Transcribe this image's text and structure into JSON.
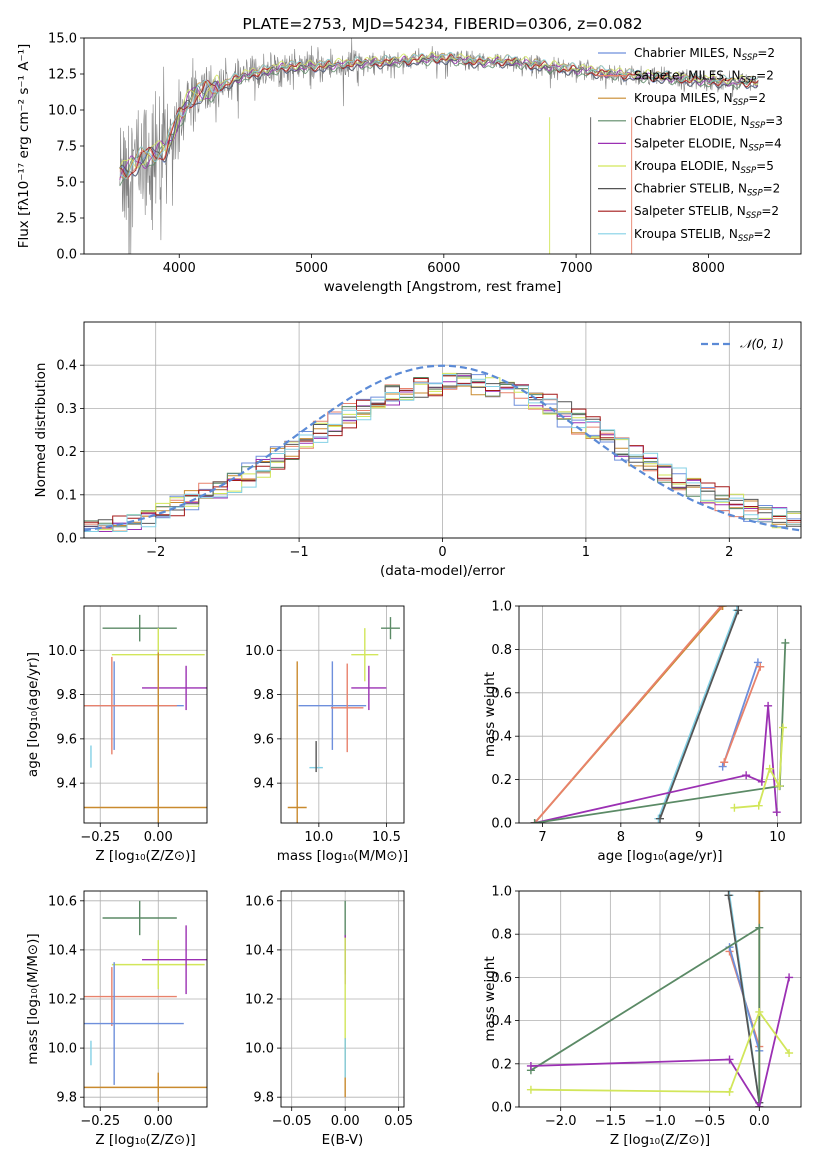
{
  "chart_data": [
    {
      "id": "spectrum",
      "type": "line",
      "title": "PLATE=2753, MJD=54234, FIBERID=0306, z=0.082",
      "xlabel": "wavelength [Angstrom, rest frame]",
      "ylabel": "Flux [fλ10⁻¹⁷ erg cm⁻² s⁻¹ A⁻¹]",
      "xlim": [
        3280,
        8700
      ],
      "ylim": [
        0,
        15
      ],
      "xticks": [
        4000,
        5000,
        6000,
        7000,
        8000
      ],
      "yticks": [
        0.0,
        2.5,
        5.0,
        7.5,
        10.0,
        12.5,
        15.0
      ],
      "grid": false,
      "legend_position": "right",
      "data": {
        "name": "data",
        "color": "#808080",
        "x_range": [
          3550,
          8380
        ],
        "x": [
          3550,
          3700,
          3900,
          4000,
          4100,
          4300,
          4500,
          4800,
          5000,
          5300,
          5500,
          5800,
          6000,
          6300,
          6500,
          6800,
          7000,
          7300,
          7600,
          8000,
          8380
        ],
        "y": [
          5.5,
          6.5,
          7.3,
          9.5,
          11.0,
          11.6,
          12.4,
          13.0,
          13.0,
          13.2,
          13.3,
          13.5,
          13.6,
          13.3,
          13.4,
          13.0,
          12.8,
          12.5,
          12.3,
          12.0,
          11.9
        ]
      },
      "legend": [
        {
          "label": "Chabrier MILES, N",
          "sub": "SSP",
          "tail": "=2",
          "color": "#6e8fdc"
        },
        {
          "label": "Salpeter MILES, N",
          "sub": "SSP",
          "tail": "=2",
          "color": "#e8826c"
        },
        {
          "label": "Kroupa MILES, N",
          "sub": "SSP",
          "tail": "=2",
          "color": "#c98a2e"
        },
        {
          "label": "Chabrier ELODIE, N",
          "sub": "SSP",
          "tail": "=3",
          "color": "#5b8a66"
        },
        {
          "label": "Salpeter ELODIE, N",
          "sub": "SSP",
          "tail": "=4",
          "color": "#9b30b3"
        },
        {
          "label": "Kroupa ELODIE, N",
          "sub": "SSP",
          "tail": "=5",
          "color": "#d2e65a"
        },
        {
          "label": "Chabrier STELIB, N",
          "sub": "SSP",
          "tail": "=2",
          "color": "#555555"
        },
        {
          "label": "Salpeter STELIB, N",
          "sub": "SSP",
          "tail": "=2",
          "color": "#a31919"
        },
        {
          "label": "Kroupa STELIB, N",
          "sub": "SSP",
          "tail": "=2",
          "color": "#84d1e6"
        }
      ]
    },
    {
      "id": "residuals",
      "type": "line",
      "xlabel": "(data-model)/error",
      "ylabel": "Normed distribution",
      "xlim": [
        -2.5,
        2.5
      ],
      "ylim": [
        0,
        0.5
      ],
      "xticks": [
        -2,
        -1,
        0,
        1,
        2
      ],
      "yticks": [
        0.0,
        0.1,
        0.2,
        0.3,
        0.4
      ],
      "grid": true,
      "legend_position": "top-right",
      "legend": {
        "label": "𝒩(0, 1)",
        "color": "#5b8ad6",
        "style": "dashed"
      }
    },
    {
      "id": "age-vs-Z",
      "type": "scatter",
      "xlabel": "Z [log₁₀(Z/Z⊙)]",
      "ylabel": "age  [log₁₀(age/yr)]",
      "xlim": [
        -0.32,
        0.21
      ],
      "ylim": [
        9.22,
        10.2
      ],
      "xticks": [
        -0.25,
        0.0
      ],
      "yticks": [
        9.4,
        9.6,
        9.8,
        10.0
      ],
      "grid": true,
      "errorbars": [
        {
          "color": "#5b8a66",
          "x": -0.08,
          "y": 10.1,
          "xerr": 0.16,
          "yerr": 0.06
        },
        {
          "color": "#d2e65a",
          "x": 0.0,
          "y": 9.98,
          "xerr": 0.2,
          "yerr": 0.12
        },
        {
          "color": "#9b30b3",
          "x": 0.12,
          "y": 9.83,
          "xerr": 0.19,
          "yerr": 0.1
        },
        {
          "color": "#6e8fdc",
          "x": -0.19,
          "y": 9.75,
          "xerr": 0.3,
          "yerr": 0.2
        },
        {
          "color": "#e8826c",
          "x": -0.2,
          "y": 9.75,
          "xerr": 0.28,
          "yerr": 0.22
        },
        {
          "color": "#c98a2e",
          "x": 0.0,
          "y": 9.29,
          "xerr": 0.33,
          "yerr": 0.7
        },
        {
          "color": "#84d1e6",
          "x": -0.29,
          "y": 9.52,
          "xerr": 0.0,
          "yerr": 0.05
        }
      ]
    },
    {
      "id": "age-vs-mass",
      "type": "scatter",
      "xlabel": "mass [log₁₀(M/M⊙)]",
      "ylabel": "",
      "xlim": [
        9.72,
        10.63
      ],
      "ylim": [
        9.22,
        10.2
      ],
      "xticks": [
        10.0,
        10.5
      ],
      "yticks": [
        9.4,
        9.6,
        9.8,
        10.0
      ],
      "grid": true,
      "errorbars": [
        {
          "color": "#5b8a66",
          "x": 10.53,
          "y": 10.1,
          "xerr": 0.07,
          "yerr": 0.05
        },
        {
          "color": "#d2e65a",
          "x": 10.34,
          "y": 9.98,
          "xerr": 0.1,
          "yerr": 0.12
        },
        {
          "color": "#9b30b3",
          "x": 10.37,
          "y": 9.83,
          "xerr": 0.13,
          "yerr": 0.1
        },
        {
          "color": "#6e8fdc",
          "x": 10.1,
          "y": 9.75,
          "xerr": 0.25,
          "yerr": 0.2
        },
        {
          "color": "#e8826c",
          "x": 10.21,
          "y": 9.74,
          "xerr": 0.12,
          "yerr": 0.2
        },
        {
          "color": "#c98a2e",
          "x": 9.84,
          "y": 9.29,
          "xerr": 0.07,
          "yerr": 0.66
        },
        {
          "color": "#84d1e6",
          "x": 9.98,
          "y": 9.47,
          "xerr": 0.05,
          "yerr": 0.0
        },
        {
          "color": "#555555",
          "x": 9.98,
          "y": 9.52,
          "xerr": 0.0,
          "yerr": 0.07
        }
      ]
    },
    {
      "id": "weight-vs-age",
      "type": "line",
      "xlabel": "age  [log₁₀(age/yr)]",
      "ylabel": "mass weight",
      "xlim": [
        6.7,
        10.3
      ],
      "ylim": [
        0,
        1
      ],
      "xticks": [
        7,
        8,
        9,
        10
      ],
      "yticks": [
        0.0,
        0.2,
        0.4,
        0.6,
        0.8,
        1.0
      ],
      "grid": true,
      "series": [
        {
          "color": "#c98a2e",
          "x": [
            6.9,
            9.3
          ],
          "y": [
            0.0,
            1.0
          ]
        },
        {
          "color": "#e8826c",
          "x": [
            6.9,
            9.28
          ],
          "y": [
            0.0,
            1.0
          ]
        },
        {
          "color": "#84d1e6",
          "x": [
            8.48,
            9.48
          ],
          "y": [
            0.02,
            0.98
          ]
        },
        {
          "color": "#555555",
          "x": [
            8.5,
            9.5
          ],
          "y": [
            0.02,
            0.98
          ]
        },
        {
          "color": "#6e8fdc",
          "x": [
            9.3,
            9.75
          ],
          "y": [
            0.26,
            0.74
          ]
        },
        {
          "color": "#e8826c",
          "x": [
            9.32,
            9.78
          ],
          "y": [
            0.28,
            0.72
          ]
        },
        {
          "color": "#9b30b3",
          "x": [
            6.9,
            9.6,
            9.8,
            9.88,
            9.99
          ],
          "y": [
            0.0,
            0.22,
            0.19,
            0.54,
            0.05
          ]
        },
        {
          "color": "#5b8a66",
          "x": [
            6.9,
            10.03,
            10.1
          ],
          "y": [
            0.0,
            0.17,
            0.83
          ]
        },
        {
          "color": "#d2e65a",
          "x": [
            9.45,
            9.76,
            9.9,
            10.02,
            10.07
          ],
          "y": [
            0.07,
            0.08,
            0.25,
            0.17,
            0.44
          ]
        }
      ]
    },
    {
      "id": "mass-vs-Z",
      "type": "scatter",
      "xlabel": "Z [log₁₀(Z/Z⊙)]",
      "ylabel": "mass [log₁₀(M/M⊙)]",
      "xlim": [
        -0.32,
        0.21
      ],
      "ylim": [
        9.76,
        10.64
      ],
      "xticks": [
        -0.25,
        0.0
      ],
      "yticks": [
        9.8,
        10.0,
        10.2,
        10.4,
        10.6
      ],
      "grid": true,
      "errorbars": [
        {
          "color": "#5b8a66",
          "x": -0.08,
          "y": 10.53,
          "xerr": 0.16,
          "yerr": 0.07
        },
        {
          "color": "#d2e65a",
          "x": 0.0,
          "y": 10.34,
          "xerr": 0.2,
          "yerr": 0.1
        },
        {
          "color": "#9b30b3",
          "x": 0.12,
          "y": 10.36,
          "xerr": 0.19,
          "yerr": 0.14
        },
        {
          "color": "#e8826c",
          "x": -0.2,
          "y": 10.21,
          "xerr": 0.28,
          "yerr": 0.12
        },
        {
          "color": "#6e8fdc",
          "x": -0.19,
          "y": 10.1,
          "xerr": 0.3,
          "yerr": 0.25
        },
        {
          "color": "#c98a2e",
          "x": 0.0,
          "y": 9.84,
          "xerr": 0.33,
          "yerr": 0.06
        },
        {
          "color": "#84d1e6",
          "x": -0.29,
          "y": 9.98,
          "xerr": 0.0,
          "yerr": 0.05
        }
      ]
    },
    {
      "id": "mass-vs-EBV",
      "type": "scatter",
      "xlabel": "E(B-V)",
      "ylabel": "",
      "xlim": [
        -0.06,
        0.055
      ],
      "ylim": [
        9.76,
        10.64
      ],
      "xticks": [
        -0.05,
        0.0,
        0.05
      ],
      "yticks": [
        9.8,
        10.0,
        10.2,
        10.4,
        10.6
      ],
      "grid": true,
      "errorbars": [
        {
          "color": "#5b8a66",
          "x": 0.0,
          "y": 10.45,
          "xerr": 0.0,
          "yerr": 0.15
        },
        {
          "color": "#9b30b3",
          "x": 0.0,
          "y": 10.36,
          "xerr": 0.0,
          "yerr": 0.1
        },
        {
          "color": "#d2e65a",
          "x": 0.0,
          "y": 10.2,
          "xerr": 0.0,
          "yerr": 0.25
        },
        {
          "color": "#c98a2e",
          "x": 0.0,
          "y": 9.92,
          "xerr": 0.0,
          "yerr": 0.12
        },
        {
          "color": "#84d1e6",
          "x": 0.0,
          "y": 9.96,
          "xerr": 0.0,
          "yerr": 0.08
        }
      ]
    },
    {
      "id": "weight-vs-Z",
      "type": "line",
      "xlabel": "Z [log₁₀(Z/Z⊙)]",
      "ylabel": "mass weight",
      "xlim": [
        -2.42,
        0.42
      ],
      "ylim": [
        0,
        1
      ],
      "xticks": [
        -2.0,
        -1.5,
        -1.0,
        -0.5,
        0.0
      ],
      "yticks": [
        0.0,
        0.2,
        0.4,
        0.6,
        0.8,
        1.0
      ],
      "grid": true,
      "series": [
        {
          "color": "#c98a2e",
          "x": [
            0.0,
            0.0
          ],
          "y": [
            0.0,
            1.0
          ]
        },
        {
          "color": "#e8826c",
          "x": [
            -0.3,
            0.0
          ],
          "y": [
            0.72,
            0.28
          ]
        },
        {
          "color": "#6e8fdc",
          "x": [
            -0.3,
            0.0
          ],
          "y": [
            0.74,
            0.26
          ]
        },
        {
          "color": "#84d1e6",
          "x": [
            -0.3,
            0.0
          ],
          "y": [
            0.98,
            0.02
          ]
        },
        {
          "color": "#555555",
          "x": [
            -0.31,
            0.0
          ],
          "y": [
            0.98,
            0.02
          ]
        },
        {
          "color": "#5b8a66",
          "x": [
            -2.3,
            0.0,
            0.0
          ],
          "y": [
            0.17,
            0.83,
            0.0
          ]
        },
        {
          "color": "#9b30b3",
          "x": [
            -2.3,
            -0.3,
            0.0,
            0.3
          ],
          "y": [
            0.19,
            0.22,
            0.0,
            0.6
          ]
        },
        {
          "color": "#d2e65a",
          "x": [
            -2.3,
            -0.3,
            0.0,
            0.3
          ],
          "y": [
            0.08,
            0.07,
            0.44,
            0.25
          ]
        }
      ]
    }
  ]
}
